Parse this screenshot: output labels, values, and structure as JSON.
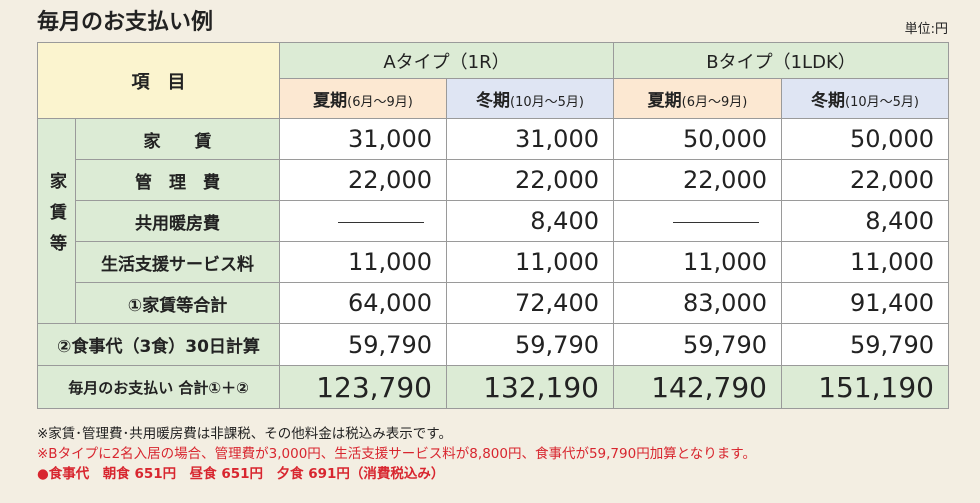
{
  "title": "毎月のお支払い例",
  "unit": "単位:円",
  "table": {
    "item_header": "項　目",
    "group_label": "家賃等",
    "types": [
      {
        "name": "Aタイプ（1R）",
        "periods": [
          {
            "label": "夏期",
            "range": "(6月～9月)"
          },
          {
            "label": "冬期",
            "range": "(10月～5月)"
          }
        ]
      },
      {
        "name": "Bタイプ（1LDK）",
        "periods": [
          {
            "label": "夏期",
            "range": "(6月～9月)"
          },
          {
            "label": "冬期",
            "range": "(10月～5月)"
          }
        ]
      }
    ],
    "rows": [
      {
        "label": "家　　賃",
        "values": [
          "31,000",
          "31,000",
          "50,000",
          "50,000"
        ]
      },
      {
        "label": "管　理　費",
        "values": [
          "22,000",
          "22,000",
          "22,000",
          "22,000"
        ]
      },
      {
        "label": "共用暖房費",
        "values": [
          null,
          "8,400",
          null,
          "8,400"
        ]
      },
      {
        "label": "生活支援サービス料",
        "values": [
          "11,000",
          "11,000",
          "11,000",
          "11,000"
        ]
      },
      {
        "label": "①家賃等合計",
        "values": [
          "64,000",
          "72,400",
          "83,000",
          "91,400"
        ]
      },
      {
        "label": "②食事代（3食）30日計算",
        "values": [
          "59,790",
          "59,790",
          "59,790",
          "59,790"
        ]
      },
      {
        "label": "毎月のお支払い 合計①＋②",
        "values": [
          "123,790",
          "132,190",
          "142,790",
          "151,190"
        ]
      }
    ]
  },
  "notes": [
    "※家賃･管理費･共用暖房費は非課税、その他料金は税込み表示です。",
    "※Bタイプに2名入居の場合、管理費が3,000円、生活支援サービス料が8,800円、食事代が59,790円加算となります。",
    "●食事代　朝食 651円　昼食 651円　夕食 691円（消費税込み）"
  ]
}
